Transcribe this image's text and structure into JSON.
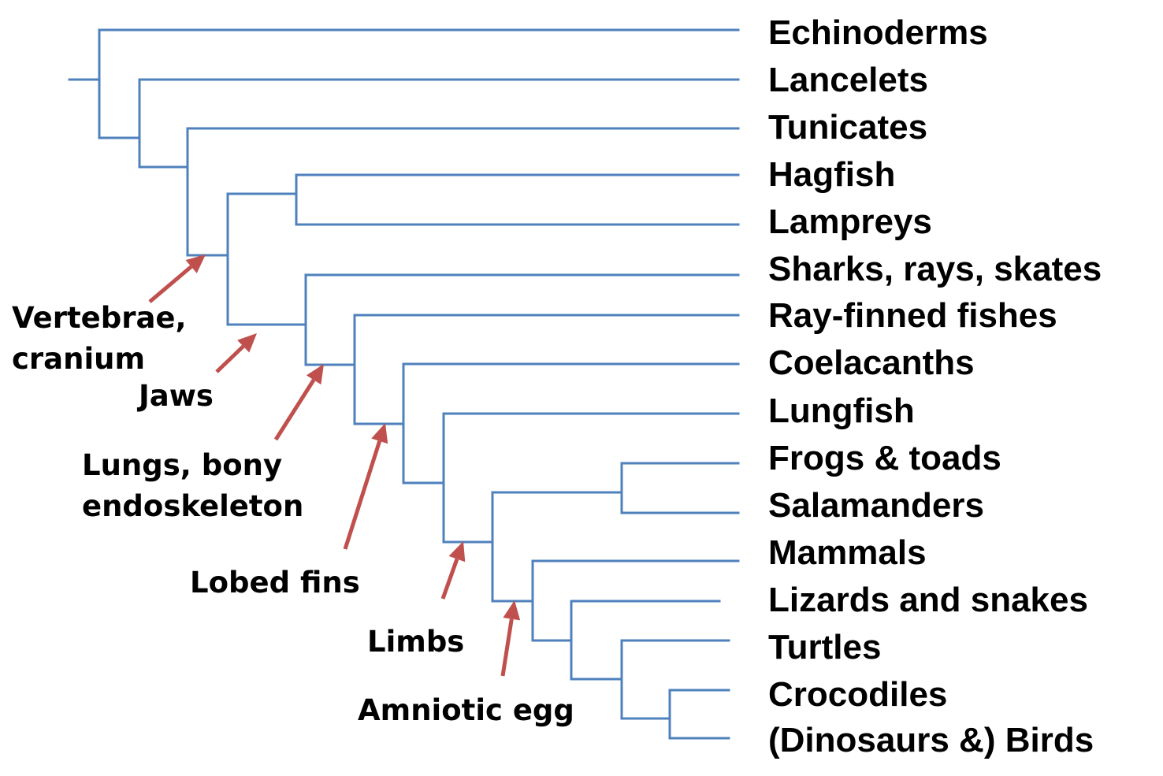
{
  "colors": {
    "branch": "#4f81bd",
    "arrow": "#c0504d",
    "text": "#000000"
  },
  "taxa": [
    "Echinoderms",
    "Lancelets",
    "Tunicates",
    "Hagfish",
    "Lampreys",
    "Sharks, rays, skates",
    "Ray-finned fishes",
    "Coelacanths",
    "Lungfish",
    "Frogs & toads",
    "Salamanders",
    "Mammals",
    "Lizards and snakes",
    "Turtles",
    "Crocodiles",
    "(Dinosaurs &) Birds"
  ],
  "traits": [
    {
      "lines": [
        "Vertebrae,",
        "cranium"
      ]
    },
    {
      "lines": [
        "Jaws"
      ]
    },
    {
      "lines": [
        "Lungs, bony",
        "endoskeleton"
      ]
    },
    {
      "lines": [
        "Lobed fins"
      ]
    },
    {
      "lines": [
        "Limbs"
      ]
    },
    {
      "lines": [
        "Amniotic egg"
      ]
    }
  ]
}
